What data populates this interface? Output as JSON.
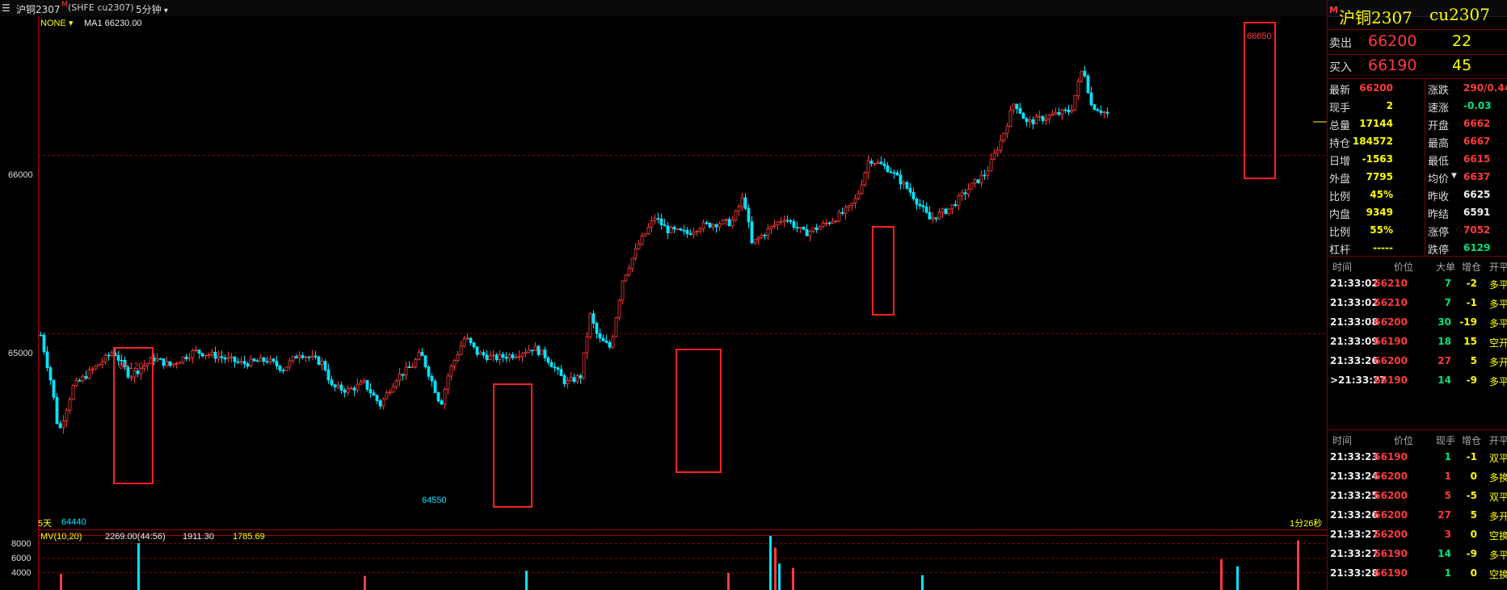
{
  "header": {
    "symbol": "沪铜2307",
    "flag": "M",
    "exchange": "(SHFE cu2307)",
    "period": "5分钟",
    "indicator_mode": "NONE",
    "ma_label": "MA1 66230.00"
  },
  "chart_data": {
    "type": "candlestick",
    "y_ticks": [
      66000,
      65000
    ],
    "volume_ticks": [
      8000,
      6000,
      4000
    ],
    "ylim": [
      64350,
      66800
    ],
    "annotations": [
      {
        "text": "66650",
        "color": "#ff3b3b"
      },
      {
        "text": "65120",
        "color": "#ff3b3b"
      },
      {
        "text": "64550",
        "color": "#00e5ff"
      },
      {
        "text": "64440",
        "color": "#00e5ff"
      }
    ],
    "bottom_left": "5天",
    "bottom_right": "1分26秒",
    "volume_indicator": "MV(10,20)",
    "volume_values": [
      "2269.00(44:56)",
      "1911.30",
      "1785.69"
    ]
  },
  "right_panel": {
    "title_cn": "沪铜2307",
    "title_code": "cu2307",
    "flag": "M",
    "ask": {
      "label": "卖出",
      "price": "66200",
      "vol": "22"
    },
    "bid": {
      "label": "买入",
      "price": "66190",
      "vol": "45"
    },
    "stats_left": [
      {
        "label": "最新",
        "value": "66200",
        "color": "red"
      },
      {
        "label": "现手",
        "value": "2",
        "color": "yel"
      },
      {
        "label": "总量",
        "value": "17144",
        "color": "yel"
      },
      {
        "label": "持仓",
        "value": "184572",
        "color": "yel"
      },
      {
        "label": "日增",
        "value": "-1563",
        "color": "yel"
      },
      {
        "label": "外盘",
        "value": "7795",
        "color": "yel"
      },
      {
        "label": "比例",
        "value": "45%",
        "color": "yel"
      },
      {
        "label": "内盘",
        "value": "9349",
        "color": "yel"
      },
      {
        "label": "比例",
        "value": "55%",
        "color": "yel"
      },
      {
        "label": "杠杆",
        "value": "-----",
        "color": "yel"
      }
    ],
    "stats_right": [
      {
        "label": "涨跌",
        "value": "290/0.44",
        "color": "red"
      },
      {
        "label": "速涨",
        "value": "-0.03",
        "color": "grn"
      },
      {
        "label": "开盘",
        "value": "6662",
        "color": "red"
      },
      {
        "label": "最高",
        "value": "6667",
        "color": "red"
      },
      {
        "label": "最低",
        "value": "6615",
        "color": "red"
      },
      {
        "label": "均价",
        "value": "6637",
        "color": "red"
      },
      {
        "label": "昨收",
        "value": "6625",
        "color": "white"
      },
      {
        "label": "昨结",
        "value": "6591",
        "color": "white"
      },
      {
        "label": "涨停",
        "value": "7052",
        "color": "red"
      },
      {
        "label": "跌停",
        "value": "6129",
        "color": "grn"
      }
    ],
    "ticks1_header": [
      "时间",
      "价位",
      "大单",
      "增仓",
      "开平"
    ],
    "ticks1": [
      {
        "time": "21:33:02",
        "price": "66210",
        "v": "7",
        "oi": "-2",
        "type": "多平",
        "vc": "grn",
        "tc": "yel"
      },
      {
        "time": "21:33:02",
        "price": "66210",
        "v": "7",
        "oi": "-1",
        "type": "多平",
        "vc": "grn",
        "tc": "yel"
      },
      {
        "time": "21:33:08",
        "price": "66200",
        "v": "30",
        "oi": "-19",
        "type": "多平",
        "vc": "grn",
        "tc": "yel"
      },
      {
        "time": "21:33:09",
        "price": "66190",
        "v": "18",
        "oi": "15",
        "type": "空开",
        "vc": "grn",
        "tc": "yel"
      },
      {
        "time": "21:33:26",
        "price": "66200",
        "v": "27",
        "oi": "5",
        "type": "多开",
        "vc": "red",
        "tc": "yel"
      },
      {
        "time": ">21:33:27",
        "price": "66190",
        "v": "14",
        "oi": "-9",
        "type": "多平",
        "vc": "grn",
        "tc": "yel"
      }
    ],
    "ticks2_header": [
      "时间",
      "价位",
      "现手",
      "增仓",
      "开平"
    ],
    "ticks2": [
      {
        "time": "21:33:23",
        "price": "66190",
        "v": "1",
        "oi": "-1",
        "type": "双平",
        "vc": "grn",
        "tc": "yel"
      },
      {
        "time": "21:33:24",
        "price": "66200",
        "v": "1",
        "oi": "0",
        "type": "多换",
        "vc": "red",
        "tc": "yel"
      },
      {
        "time": "21:33:25",
        "price": "66200",
        "v": "5",
        "oi": "-5",
        "type": "双平",
        "vc": "red",
        "tc": "yel"
      },
      {
        "time": "21:33:26",
        "price": "66200",
        "v": "27",
        "oi": "5",
        "type": "多开",
        "vc": "red",
        "tc": "yel"
      },
      {
        "time": "21:33:27",
        "price": "66200",
        "v": "3",
        "oi": "0",
        "type": "空换",
        "vc": "red",
        "tc": "yel"
      },
      {
        "time": "21:33:27",
        "price": "66190",
        "v": "14",
        "oi": "-9",
        "type": "多平",
        "vc": "grn",
        "tc": "yel"
      },
      {
        "time": "21:33:28",
        "price": "66190",
        "v": "1",
        "oi": "0",
        "type": "空换",
        "vc": "grn",
        "tc": "yel"
      }
    ]
  }
}
